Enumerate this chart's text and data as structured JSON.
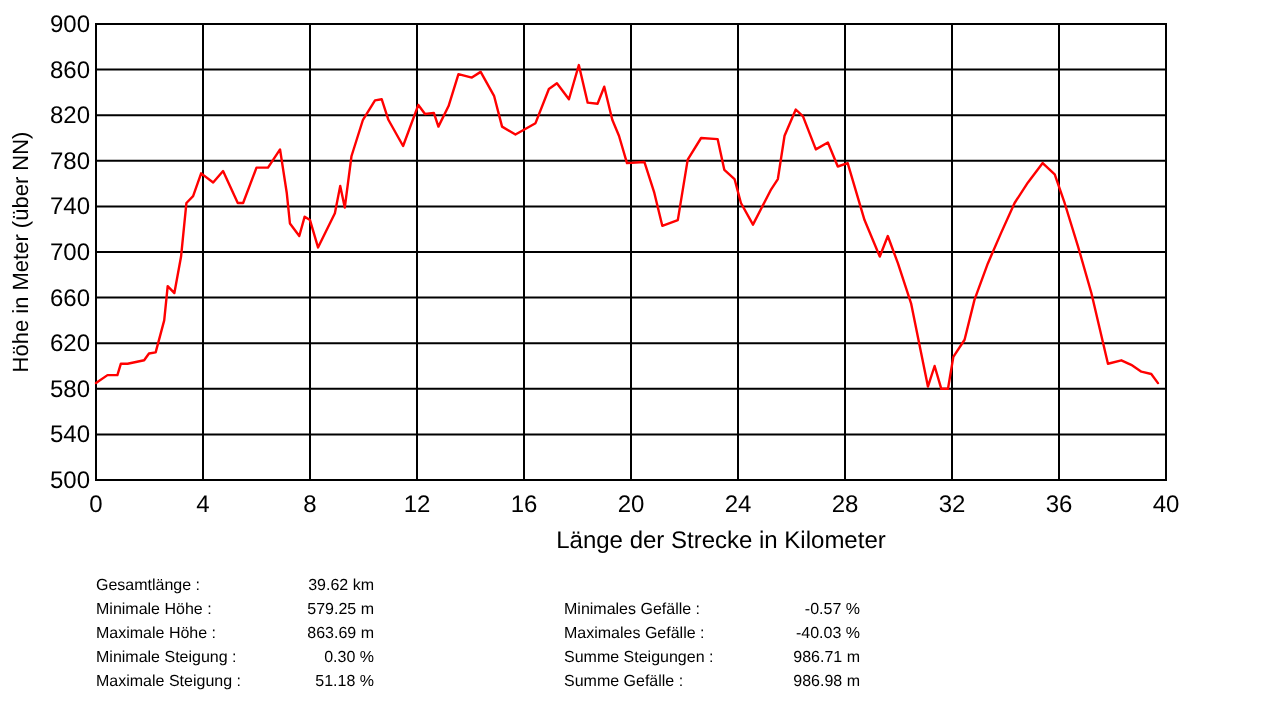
{
  "chart_data": {
    "type": "line",
    "xlabel": "Länge der Strecke in Kilometer",
    "ylabel": "Höhe in Meter (über NN)",
    "x": [
      0,
      0.43,
      0.8,
      0.93,
      1.18,
      1.8,
      1.98,
      2.23,
      2.55,
      2.68,
      2.93,
      3.18,
      3.38,
      3.63,
      3.93,
      4.38,
      4.75,
      5.3,
      5.5,
      6.0,
      6.43,
      6.88,
      7.13,
      7.25,
      7.6,
      7.8,
      8.0,
      8.3,
      8.93,
      9.13,
      9.3,
      9.55,
      9.98,
      10.43,
      10.68,
      10.93,
      11.48,
      12.05,
      12.3,
      12.63,
      12.8,
      13.18,
      13.55,
      14.05,
      14.38,
      14.88,
      15.18,
      15.68,
      16.43,
      16.93,
      17.23,
      17.68,
      18.05,
      18.38,
      18.75,
      19.0,
      19.3,
      19.55,
      19.85,
      20.5,
      20.87,
      21.17,
      21.75,
      22.12,
      22.62,
      23.24,
      23.49,
      23.87,
      24.11,
      24.56,
      25.24,
      25.49,
      25.74,
      26.16,
      26.43,
      26.91,
      27.36,
      27.73,
      28.1,
      28.73,
      29.3,
      29.6,
      29.98,
      30.47,
      30.85,
      31.1,
      31.35,
      31.6,
      31.85,
      32.05,
      32.47,
      32.84,
      33.34,
      33.84,
      34.34,
      34.84,
      35.39,
      35.84,
      36.21,
      36.71,
      37.21,
      37.53,
      37.83,
      38.33,
      38.7,
      39.08,
      39.45,
      39.7
    ],
    "series": [
      {
        "color": "#ff0000",
        "values": [
          585,
          592,
          592,
          602,
          602,
          605,
          611,
          612,
          640,
          670,
          664,
          696,
          743,
          749,
          769,
          761,
          771,
          743,
          743,
          774,
          774,
          790,
          752,
          725,
          714,
          731,
          728,
          704,
          734,
          758,
          739,
          784,
          816,
          833,
          834,
          816,
          793,
          829,
          821,
          822,
          810,
          828,
          856,
          853,
          858,
          837,
          810,
          803,
          813,
          843,
          848,
          834,
          864,
          831,
          830,
          845,
          816,
          802,
          778,
          779,
          752,
          723,
          728,
          781,
          800,
          799,
          772,
          764,
          743,
          724,
          755,
          764,
          802,
          825,
          819,
          790,
          796,
          775,
          778,
          728,
          696,
          714,
          690,
          655,
          611,
          582,
          600,
          580,
          580,
          608,
          623,
          658,
          690,
          717,
          743,
          761,
          778,
          768,
          743,
          705,
          664,
          632,
          602,
          605,
          601,
          595,
          593,
          585
        ]
      }
    ],
    "xlim": [
      0,
      40
    ],
    "xticks": [
      0,
      4,
      8,
      12,
      16,
      20,
      24,
      28,
      32,
      36,
      40
    ],
    "ylim": [
      500,
      900
    ],
    "yticks": [
      500,
      540,
      580,
      620,
      660,
      700,
      740,
      780,
      820,
      860,
      900
    ],
    "grid": true,
    "annotations": [
      "Gesamtlänge :",
      "39.62 km",
      "Minimale Höhe :",
      "579.25 m",
      "Maximale Höhe :",
      "863.69 m",
      "Minimale Steigung :",
      "0.30 %",
      "Maximale Steigung :",
      "51.18 %",
      "Minimales Gefälle :",
      "-0.57 %",
      "Maximales Gefälle :",
      "-40.03 %",
      "Summe Steigungen :",
      "986.71 m",
      "Summe Gefälle :",
      "986.98 m"
    ]
  }
}
